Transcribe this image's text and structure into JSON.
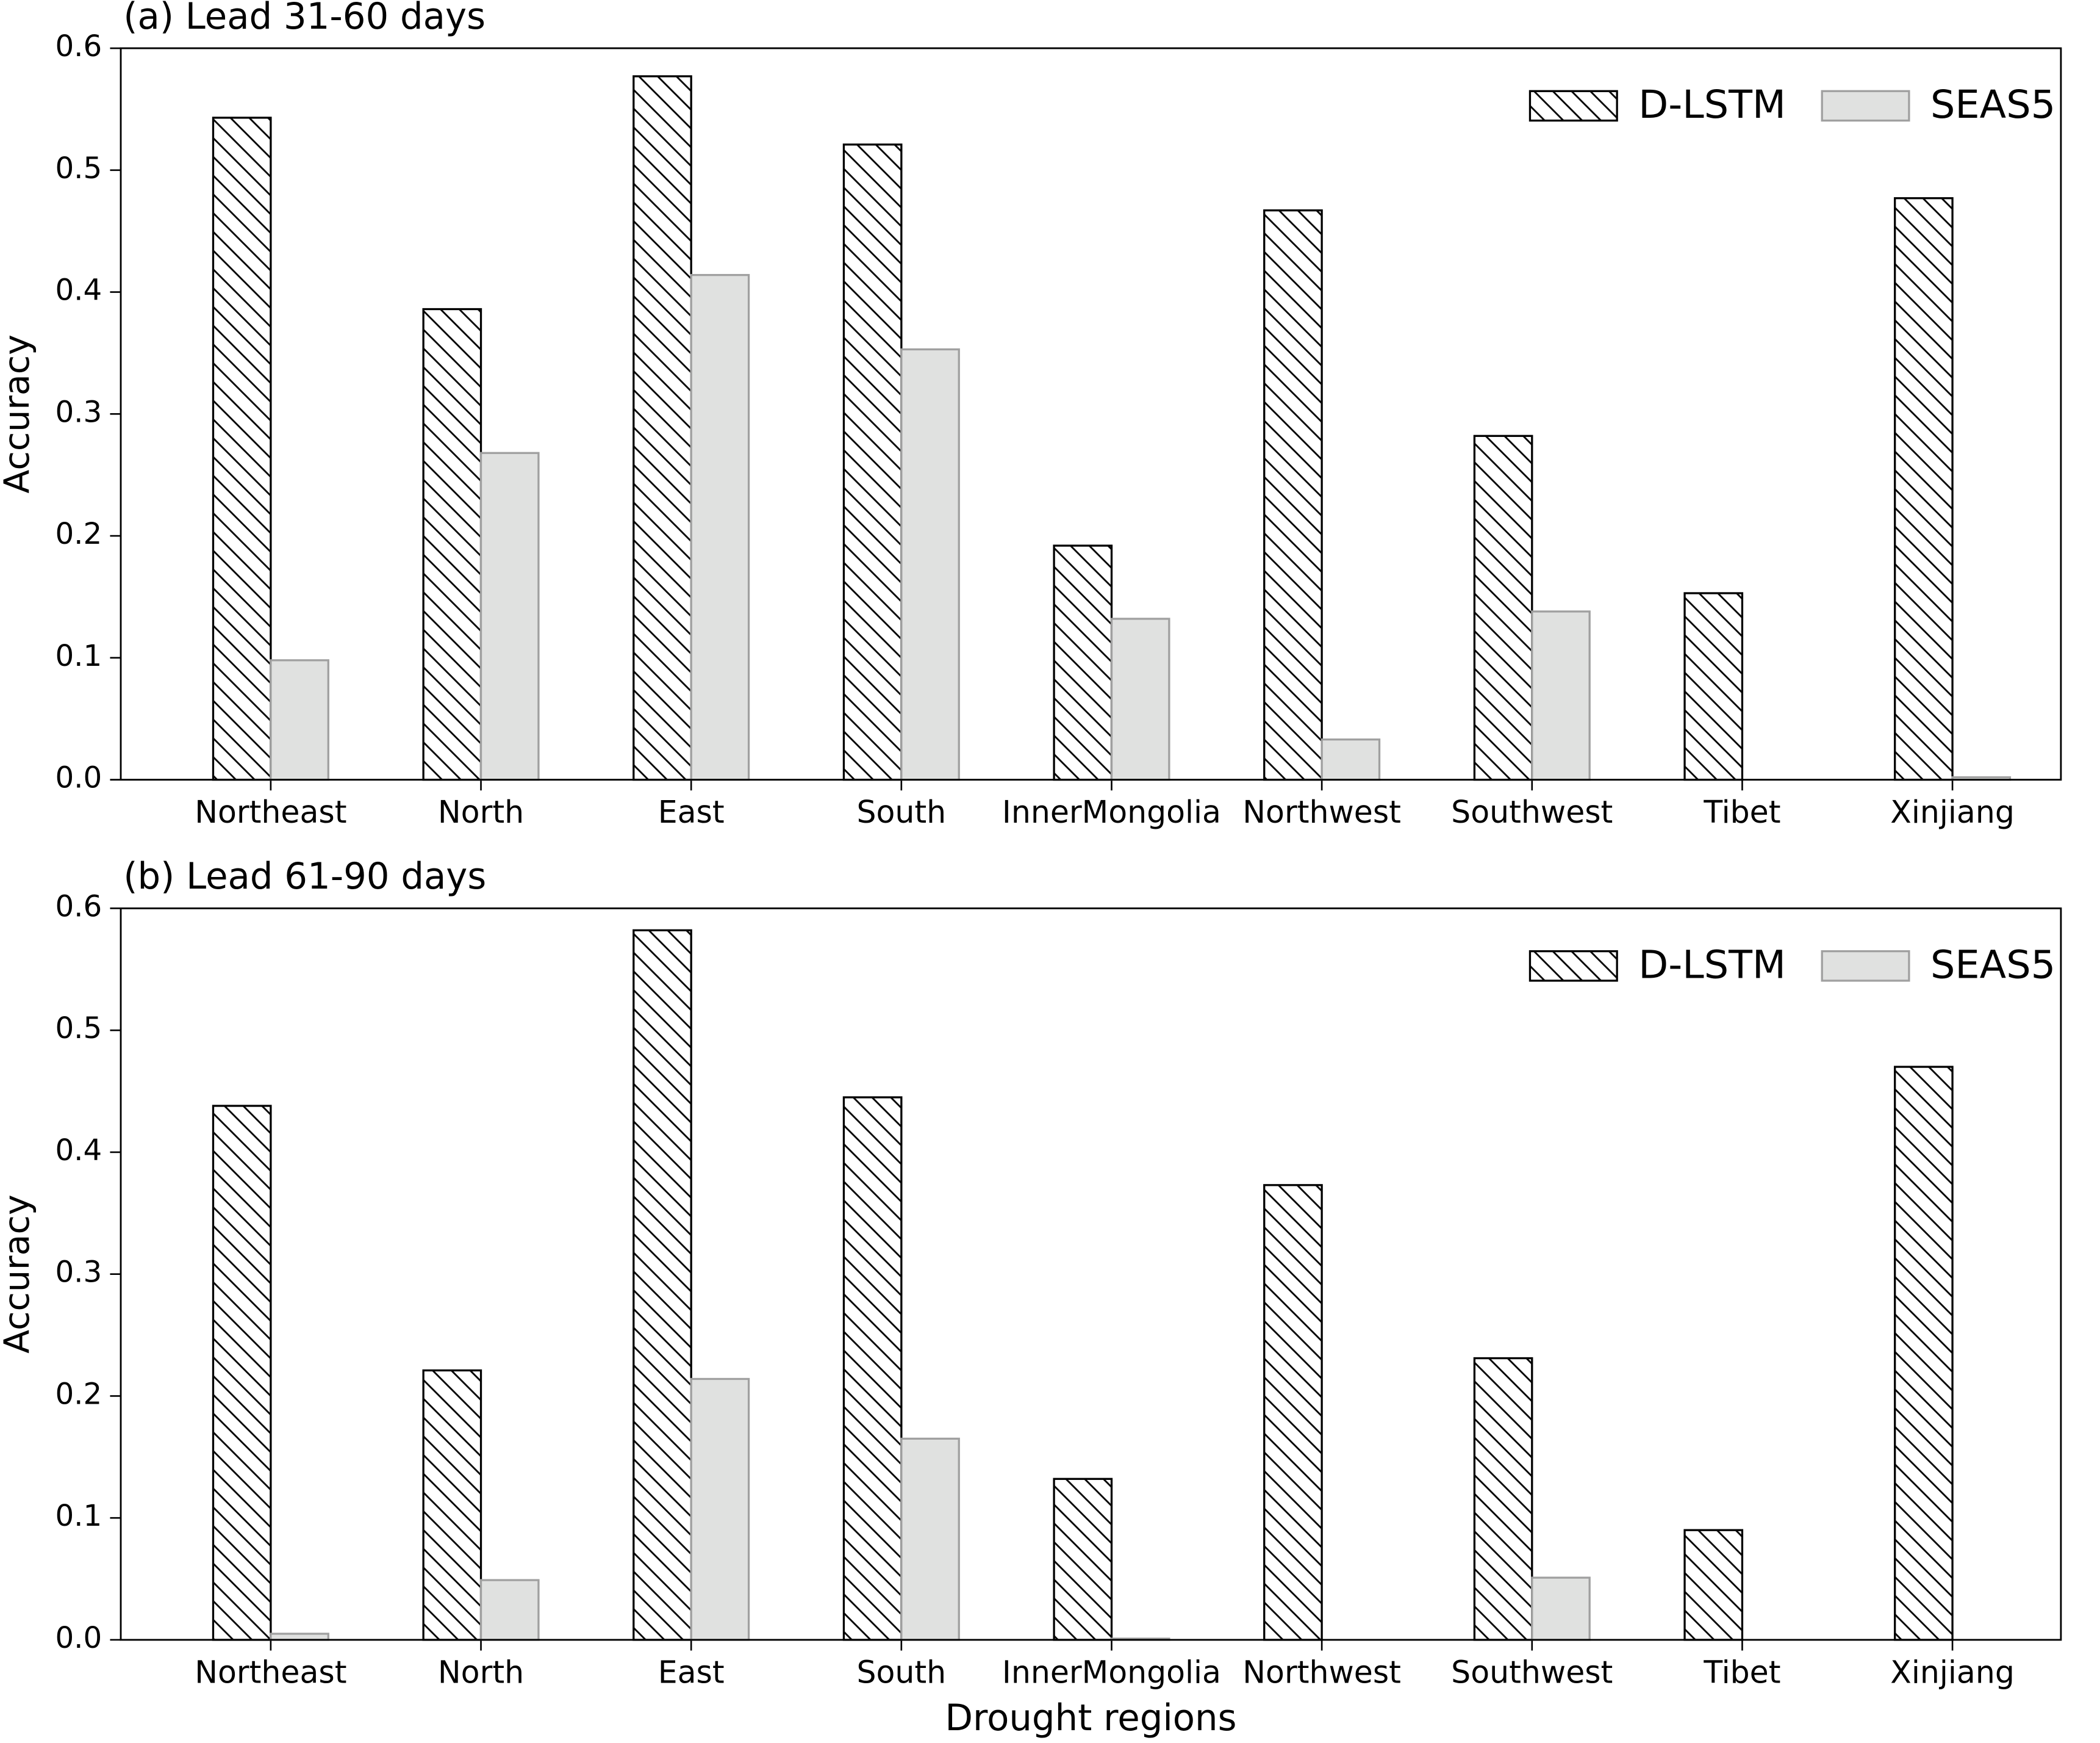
{
  "chart_data": [
    {
      "type": "bar",
      "title": "(a) Lead 31-60 days",
      "y_label": "Accuracy",
      "categories": [
        "Northeast",
        "North",
        "East",
        "South",
        "InnerMongolia",
        "Northwest",
        "Southwest",
        "Tibet",
        "Xinjiang"
      ],
      "series": [
        {
          "name": "D-LSTM",
          "color": "#ffffff",
          "edge": "#000000",
          "hatch": "\\",
          "values": [
            0.543,
            0.386,
            0.577,
            0.521,
            0.192,
            0.467,
            0.282,
            0.153,
            0.477
          ]
        },
        {
          "name": "SEAS5",
          "color": "#e0e1e0",
          "edge": "#a0a0a0",
          "values": [
            0.098,
            0.268,
            0.414,
            0.353,
            0.132,
            0.033,
            0.138,
            0,
            0.002
          ]
        }
      ],
      "ylim": [
        0,
        0.6
      ],
      "yticks": [
        {
          "value": 0,
          "label": "0.0"
        },
        0.1,
        0.2,
        0.3,
        0.4,
        0.5,
        0.6
      ],
      "legend": "upper right"
    },
    {
      "type": "bar",
      "title": "(b) Lead 61-90 days",
      "y_label": "Accuracy",
      "x_label": "Drought regions",
      "categories": [
        "Northeast",
        "North",
        "East",
        "South",
        "InnerMongolia",
        "Northwest",
        "Southwest",
        "Tibet",
        "Xinjiang"
      ],
      "series": [
        {
          "name": "D-LSTM",
          "color": "#ffffff",
          "edge": "#000000",
          "hatch": "\\",
          "values": [
            0.438,
            0.221,
            0.582,
            0.445,
            0.132,
            0.373,
            0.231,
            0.09,
            0.47
          ]
        },
        {
          "name": "SEAS5",
          "color": "#e0e1e0",
          "edge": "#a0a0a0",
          "values": [
            0.005,
            0.049,
            0.214,
            0.165,
            0.001,
            0,
            0.051,
            0,
            0
          ]
        }
      ],
      "ylim": [
        0,
        0.6
      ],
      "yticks": [
        {
          "value": 0,
          "label": "0.0"
        },
        0.1,
        0.2,
        0.3,
        0.4,
        0.5,
        0.6
      ],
      "legend": "upper right"
    }
  ]
}
